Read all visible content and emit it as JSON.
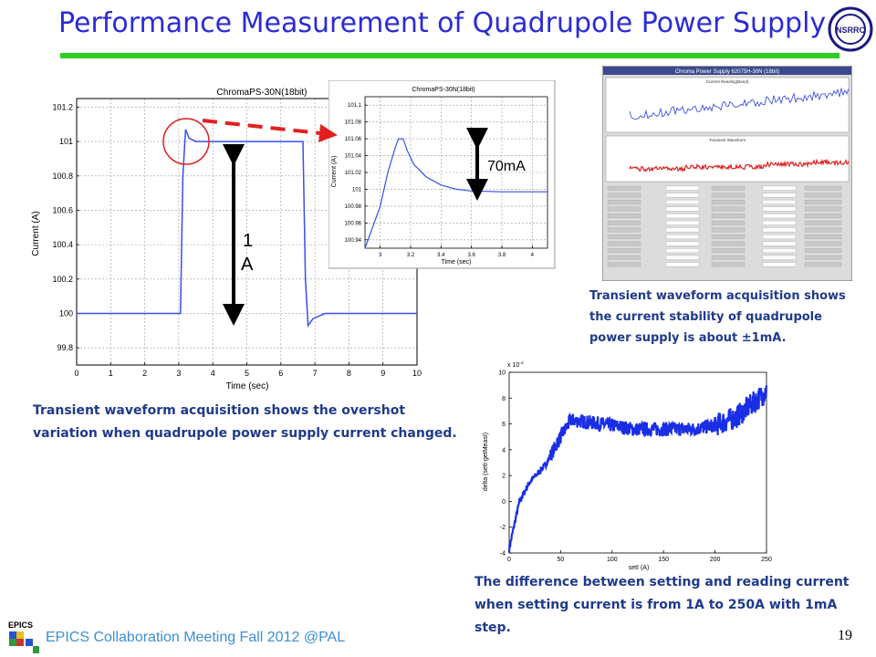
{
  "slide": {
    "title": "Performance Measurement of Quadrupole Power Supply",
    "logo_text": "NSRRC",
    "footer": "EPICS Collaboration Meeting Fall 2012 @PAL",
    "page_number": "19",
    "epics_logo_text": "EPICS",
    "colors": {
      "title": "#2b2bd6",
      "title_bar": "#2ecc22",
      "caption": "#1f3a8a",
      "footer": "#3b8fd6"
    }
  },
  "captions": {
    "left": "Transient waveform acquisition shows the overshot variation when quadrupole power supply current changed.",
    "right_top": "Transient waveform acquisition shows the current stability of quadrupole power supply is about ±1mA.",
    "right_bottom": "The difference between setting and reading current when setting current is from 1A to 250A with 1mA step."
  },
  "annotations": {
    "step_label_1": "1",
    "step_label_2": "A",
    "overshoot_label": "70mA"
  },
  "chart_data": [
    {
      "id": "main",
      "type": "line",
      "title": "ChromaPS-30N(18bit)",
      "xlabel": "Time (sec)",
      "ylabel": "Current (A)",
      "xlim": [
        0,
        10
      ],
      "ylim": [
        99.7,
        101.25
      ],
      "xticks": [
        0,
        1,
        2,
        3,
        4,
        5,
        6,
        7,
        8,
        9,
        10
      ],
      "yticks": [
        99.8,
        100,
        100.2,
        100.4,
        100.6,
        100.8,
        101,
        101.2
      ],
      "grid": true,
      "series": [
        {
          "x": [
            0,
            3.05,
            3.12,
            3.2,
            3.3,
            3.5,
            4.0,
            6.65,
            6.72,
            6.8,
            6.95,
            7.3,
            10
          ],
          "y": [
            100,
            100,
            100.8,
            101.07,
            101.02,
            101,
            101,
            101,
            100.2,
            99.93,
            99.97,
            100,
            100
          ]
        }
      ]
    },
    {
      "id": "inset",
      "type": "line",
      "title": "ChromaPS-30N(18bit)",
      "xlabel": "Time (sec)",
      "ylabel": "Current (A)",
      "xlim": [
        2.9,
        4.1
      ],
      "ylim": [
        100.93,
        101.11
      ],
      "xticks": [
        3,
        3.2,
        3.4,
        3.6,
        3.8,
        4
      ],
      "yticks": [
        100.94,
        100.96,
        100.98,
        101,
        101.02,
        101.04,
        101.06,
        101.08,
        101.1
      ],
      "grid": true,
      "series": [
        {
          "x": [
            2.9,
            3.0,
            3.05,
            3.1,
            3.12,
            3.15,
            3.18,
            3.22,
            3.3,
            3.4,
            3.5,
            3.6,
            3.8,
            4.1
          ],
          "y": [
            100.93,
            100.98,
            101.02,
            101.05,
            101.06,
            101.06,
            101.045,
            101.03,
            101.015,
            101.005,
            101.0,
            100.998,
            100.997,
            100.997
          ]
        }
      ]
    },
    {
      "id": "deviation",
      "type": "line",
      "title": "",
      "xlabel": "setI (A)",
      "ylabel": "delta (setI-getMeasI)",
      "exponent_label": "x 10",
      "exponent_power": "-3",
      "xlim": [
        0,
        250
      ],
      "ylim": [
        -4,
        10
      ],
      "xticks": [
        0,
        50,
        100,
        150,
        200,
        250
      ],
      "yticks": [
        -4,
        -2,
        0,
        2,
        4,
        6,
        8,
        10
      ],
      "grid": false,
      "series": [
        {
          "x": [
            0,
            5,
            10,
            20,
            35,
            50,
            60,
            80,
            100,
            120,
            150,
            180,
            200,
            220,
            240,
            250
          ],
          "y": [
            -3.7,
            -1.8,
            0,
            1.5,
            2.8,
            5.0,
            6.3,
            6.1,
            5.9,
            5.6,
            5.6,
            5.6,
            5.9,
            6.5,
            7.8,
            8.6
          ]
        }
      ]
    }
  ],
  "screenshot": {
    "window_title": "Chroma Power Supply 62075H-30N (18bit)",
    "top_panel_title": "Current Reading(Band)",
    "bottom_panel_title": "Transient Waveform"
  }
}
